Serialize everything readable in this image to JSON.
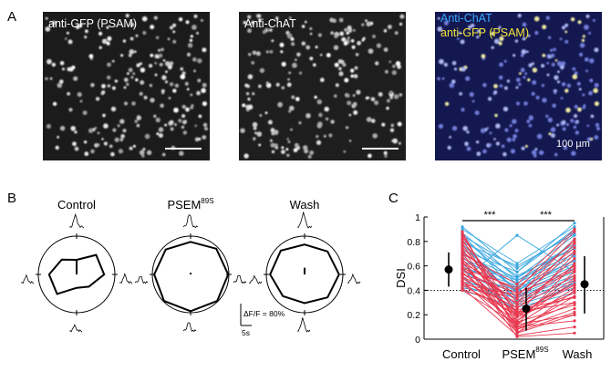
{
  "panel_a": {
    "letter": "A",
    "images": [
      {
        "labels": [
          {
            "text": "anti-GFP (PSAM)",
            "color": "#ffffff"
          }
        ],
        "scale_bar_label": "",
        "overlay": false
      },
      {
        "labels": [
          {
            "text": "Anti-ChAT",
            "color": "#ffffff"
          }
        ],
        "scale_bar_label": "",
        "overlay": false
      },
      {
        "labels": [
          {
            "text": "Anti-ChAT",
            "color": "#3aa8ff"
          },
          {
            "text": "anti-GFP (PSAM)",
            "color": "#f4e53a"
          }
        ],
        "scale_bar_label": "100 µm",
        "overlay": true
      }
    ]
  },
  "panel_b": {
    "letter": "B",
    "polars": [
      {
        "title": "Control",
        "superscript": "",
        "radii": [
          0.38,
          0.72,
          0.72,
          0.45,
          0.35,
          0.72,
          0.72,
          0.55
        ],
        "vector": 0.18
      },
      {
        "title": "PSEM",
        "superscript": "89S",
        "radii": [
          0.85,
          0.95,
          0.98,
          0.98,
          0.96,
          0.98,
          0.95,
          0.92
        ],
        "vector": 0.02
      },
      {
        "title": "Wash",
        "superscript": "",
        "radii": [
          0.78,
          0.85,
          0.9,
          0.85,
          0.75,
          0.8,
          0.9,
          0.88
        ],
        "vector": 0.08
      }
    ],
    "scale_bar": {
      "y_label": "ΔF/F = 80%",
      "x_label": "5s"
    }
  },
  "panel_c": {
    "letter": "C",
    "chart_data": {
      "type": "line",
      "ylabel": "DSI",
      "categories": [
        "Control",
        "PSEM",
        "Wash"
      ],
      "category_superscripts": [
        "",
        "89S",
        ""
      ],
      "ylim": [
        0,
        1
      ],
      "yticks": [
        0,
        0.2,
        0.4,
        0.6,
        0.8,
        1
      ],
      "ytick_labels": [
        "0",
        "0.2",
        "0.4",
        "0.6",
        "0.8",
        "1"
      ],
      "threshold": 0.4,
      "significance": [
        {
          "from": 0,
          "to": 1,
          "label": "***"
        },
        {
          "from": 1,
          "to": 2,
          "label": "***"
        }
      ],
      "group_colors": {
        "red": "#e8384f",
        "blue": "#3aa7e0"
      },
      "cells_red": [
        [
          0.88,
          0.05,
          0.4
        ],
        [
          0.86,
          0.12,
          0.62
        ],
        [
          0.84,
          0.2,
          0.7
        ],
        [
          0.82,
          0.08,
          0.35
        ],
        [
          0.8,
          0.3,
          0.78
        ],
        [
          0.78,
          0.15,
          0.55
        ],
        [
          0.76,
          0.22,
          0.45
        ],
        [
          0.74,
          0.1,
          0.3
        ],
        [
          0.72,
          0.35,
          0.82
        ],
        [
          0.7,
          0.18,
          0.5
        ],
        [
          0.68,
          0.25,
          0.66
        ],
        [
          0.66,
          0.05,
          0.2
        ],
        [
          0.65,
          0.28,
          0.58
        ],
        [
          0.63,
          0.12,
          0.42
        ],
        [
          0.62,
          0.4,
          0.88
        ],
        [
          0.6,
          0.2,
          0.35
        ],
        [
          0.58,
          0.08,
          0.25
        ],
        [
          0.57,
          0.33,
          0.72
        ],
        [
          0.55,
          0.15,
          0.48
        ],
        [
          0.54,
          0.22,
          0.3
        ],
        [
          0.52,
          0.1,
          0.15
        ],
        [
          0.51,
          0.3,
          0.6
        ],
        [
          0.5,
          0.18,
          0.38
        ],
        [
          0.48,
          0.06,
          0.22
        ],
        [
          0.47,
          0.26,
          0.52
        ],
        [
          0.46,
          0.14,
          0.28
        ],
        [
          0.45,
          0.36,
          0.75
        ],
        [
          0.44,
          0.2,
          0.44
        ],
        [
          0.42,
          0.03,
          0.1
        ],
        [
          0.41,
          0.24,
          0.34
        ],
        [
          0.4,
          0.12,
          0.2
        ],
        [
          0.7,
          0.45,
          0.9
        ],
        [
          0.58,
          0.42,
          0.8
        ],
        [
          0.64,
          0.02,
          0.05
        ],
        [
          0.53,
          0.38,
          0.56
        ]
      ],
      "cells_blue": [
        [
          0.92,
          0.55,
          0.95
        ],
        [
          0.9,
          0.62,
          0.92
        ],
        [
          0.87,
          0.5,
          0.85
        ],
        [
          0.85,
          0.58,
          0.88
        ],
        [
          0.83,
          0.45,
          0.8
        ],
        [
          0.81,
          0.52,
          0.74
        ],
        [
          0.79,
          0.6,
          0.86
        ],
        [
          0.77,
          0.48,
          0.7
        ],
        [
          0.75,
          0.4,
          0.65
        ],
        [
          0.73,
          0.55,
          0.9
        ],
        [
          0.71,
          0.42,
          0.62
        ],
        [
          0.69,
          0.5,
          0.78
        ],
        [
          0.67,
          0.38,
          0.58
        ],
        [
          0.64,
          0.46,
          0.68
        ],
        [
          0.61,
          0.35,
          0.52
        ],
        [
          0.59,
          0.44,
          0.64
        ],
        [
          0.56,
          0.32,
          0.48
        ],
        [
          0.53,
          0.4,
          0.6
        ],
        [
          0.5,
          0.28,
          0.42
        ],
        [
          0.47,
          0.36,
          0.55
        ],
        [
          0.44,
          0.3,
          0.46
        ],
        [
          0.42,
          0.34,
          0.5
        ],
        [
          0.4,
          0.26,
          0.38
        ],
        [
          0.48,
          0.85,
          0.55
        ],
        [
          0.66,
          0.48,
          0.76
        ],
        [
          0.86,
          0.38,
          0.82
        ],
        [
          0.78,
          0.33,
          0.72
        ],
        [
          0.58,
          0.22,
          0.46
        ]
      ],
      "summary": [
        {
          "mean": 0.57,
          "low": 0.43,
          "high": 0.71
        },
        {
          "mean": 0.25,
          "low": 0.07,
          "high": 0.42
        },
        {
          "mean": 0.45,
          "low": 0.21,
          "high": 0.68
        }
      ]
    }
  }
}
